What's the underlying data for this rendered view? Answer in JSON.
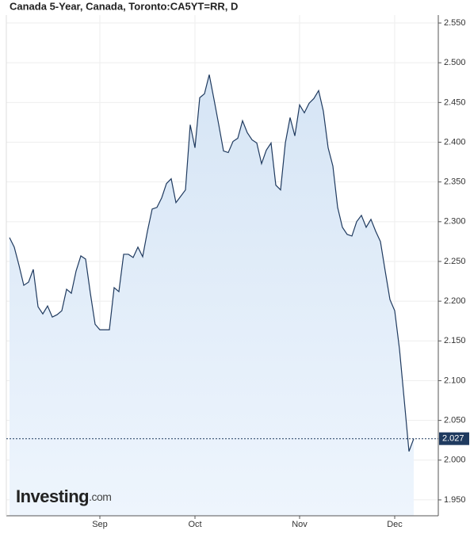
{
  "chart_data": {
    "type": "line",
    "title": "Canada 5-Year, Canada, Toronto:CA5YT=RR, D",
    "brand": "Investing",
    "brand_suffix": ".com",
    "categories": [
      null,
      null,
      null,
      null,
      null,
      null,
      null,
      null,
      null,
      null,
      null,
      null,
      null,
      null,
      null,
      null,
      null,
      null,
      null,
      "Sep",
      null,
      null,
      null,
      null,
      null,
      null,
      null,
      null,
      null,
      null,
      null,
      null,
      null,
      null,
      null,
      null,
      null,
      null,
      null,
      "Oct",
      null,
      null,
      null,
      null,
      null,
      null,
      null,
      null,
      null,
      null,
      null,
      null,
      null,
      null,
      null,
      null,
      null,
      null,
      null,
      null,
      null,
      "Nov",
      null,
      null,
      null,
      null,
      null,
      null,
      null,
      null,
      null,
      null,
      null,
      null,
      null,
      null,
      null,
      null,
      null,
      null,
      null,
      "Dec",
      null,
      null,
      null,
      null
    ],
    "series": [
      {
        "name": "CA5YT=RR",
        "color": "#1f3a5f",
        "values": [
          2.28,
          2.268,
          2.245,
          2.22,
          2.224,
          2.24,
          2.193,
          2.184,
          2.194,
          2.18,
          2.183,
          2.188,
          2.215,
          2.21,
          2.238,
          2.257,
          2.253,
          2.21,
          2.171,
          2.164,
          2.164,
          2.164,
          2.217,
          2.212,
          2.259,
          2.259,
          2.255,
          2.268,
          2.256,
          2.288,
          2.316,
          2.318,
          2.33,
          2.348,
          2.354,
          2.324,
          2.332,
          2.34,
          2.422,
          2.393,
          2.456,
          2.461,
          2.485,
          2.454,
          2.422,
          2.389,
          2.387,
          2.401,
          2.405,
          2.427,
          2.412,
          2.403,
          2.399,
          2.373,
          2.39,
          2.399,
          2.346,
          2.34,
          2.399,
          2.431,
          2.408,
          2.447,
          2.437,
          2.449,
          2.455,
          2.465,
          2.439,
          2.393,
          2.37,
          2.318,
          2.293,
          2.284,
          2.282,
          2.3,
          2.308,
          2.293,
          2.303,
          2.288,
          2.275,
          2.238,
          2.202,
          2.188,
          2.14,
          2.076,
          2.011,
          2.027
        ]
      }
    ],
    "last_value": 2.027,
    "ylim": [
      1.93,
      2.56
    ],
    "yticks": [
      {
        "value": 1.95,
        "label": "1.950"
      },
      {
        "value": 2.0,
        "label": "2.000"
      },
      {
        "value": 2.05,
        "label": "2.050"
      },
      {
        "value": 2.1,
        "label": "2.100"
      },
      {
        "value": 2.15,
        "label": "2.150"
      },
      {
        "value": 2.2,
        "label": "2.200"
      },
      {
        "value": 2.25,
        "label": "2.250"
      },
      {
        "value": 2.3,
        "label": "2.300"
      },
      {
        "value": 2.35,
        "label": "2.350"
      },
      {
        "value": 2.4,
        "label": "2.400"
      },
      {
        "value": 2.45,
        "label": "2.450"
      },
      {
        "value": 2.5,
        "label": "2.500"
      },
      {
        "value": 2.55,
        "label": "2.550"
      }
    ],
    "grid": true,
    "fill_color": "#dbe8f6"
  }
}
